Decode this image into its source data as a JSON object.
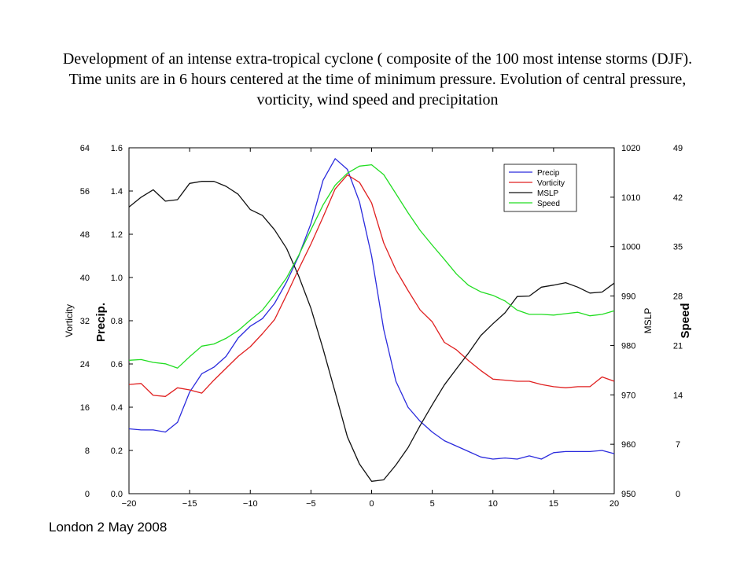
{
  "slide": {
    "title": "Development of an intense extra-tropical cyclone ( composite of the 100 most intense storms (DJF). Time units are in 6 hours centered at the time of minimum pressure. Evolution of central pressure, vorticity, wind speed and precipitation",
    "footer": "London 2 May 2008"
  },
  "chart_data": {
    "type": "line",
    "x_ticks": [
      -20,
      -15,
      -10,
      -5,
      0,
      5,
      10,
      15,
      20
    ],
    "x_tick_labels": [
      "−20",
      "−15",
      "−10",
      "−5",
      "0",
      "5",
      "10",
      "15",
      "20"
    ],
    "xlim": [
      -20,
      20
    ],
    "axes": {
      "vorticity": {
        "label": "Vorticity",
        "ylim": [
          0,
          64
        ],
        "ticks": [
          0,
          8,
          16,
          24,
          32,
          40,
          48,
          56,
          64
        ],
        "tick_labels": [
          "0",
          "8",
          "16",
          "24",
          "32",
          "40",
          "48",
          "56",
          "64"
        ]
      },
      "precip": {
        "label": "Precip.",
        "ylim": [
          0,
          1.6
        ],
        "ticks": [
          0,
          0.2,
          0.4,
          0.6,
          0.8,
          1.0,
          1.2,
          1.4,
          1.6
        ],
        "tick_labels": [
          "0.0",
          "0.2",
          "0.4",
          "0.6",
          "0.8",
          "1.0",
          "1.2",
          "1.4",
          "1.6"
        ]
      },
      "mslp": {
        "label": "MSLP",
        "ylim": [
          950,
          1020
        ],
        "ticks": [
          950,
          960,
          970,
          980,
          990,
          1000,
          1010,
          1020
        ],
        "tick_labels": [
          "950",
          "960",
          "970",
          "980",
          "990",
          "1000",
          "1010",
          "1020"
        ]
      },
      "speed": {
        "label": "Speed",
        "ylim": [
          0,
          49
        ],
        "ticks": [
          0,
          7,
          14,
          21,
          28,
          35,
          42,
          49
        ],
        "tick_labels": [
          "0",
          "7",
          "14",
          "21",
          "28",
          "35",
          "42",
          "49"
        ]
      }
    },
    "legend_position": "top-right",
    "grid": false,
    "x": [
      -20,
      -19,
      -18,
      -17,
      -16,
      -15,
      -14,
      -13,
      -12,
      -11,
      -10,
      -9,
      -8,
      -7,
      -6,
      -5,
      -4,
      -3,
      -2,
      -1,
      0,
      1,
      2,
      3,
      4,
      5,
      6,
      7,
      8,
      9,
      10,
      11,
      12,
      13,
      14,
      15,
      16,
      17,
      18,
      19,
      20
    ],
    "series": [
      {
        "name": "Precip",
        "color": "#2b2bdd",
        "axis": "precip",
        "values": [
          0.3,
          0.295,
          0.295,
          0.285,
          0.33,
          0.47,
          0.555,
          0.585,
          0.635,
          0.72,
          0.775,
          0.81,
          0.88,
          0.98,
          1.1,
          1.25,
          1.45,
          1.55,
          1.5,
          1.35,
          1.1,
          0.76,
          0.52,
          0.4,
          0.335,
          0.285,
          0.245,
          0.22,
          0.195,
          0.17,
          0.16,
          0.165,
          0.16,
          0.175,
          0.16,
          0.19,
          0.195,
          0.195,
          0.195,
          0.2,
          0.185
        ]
      },
      {
        "name": "Vorticity",
        "color": "#e02020",
        "axis": "vorticity",
        "values": [
          20.2,
          20.4,
          18.2,
          18.0,
          19.6,
          19.2,
          18.6,
          21.0,
          23.2,
          25.4,
          27.2,
          29.6,
          32.2,
          36.8,
          41.6,
          46.2,
          51.2,
          56.4,
          59.0,
          57.6,
          53.8,
          46.4,
          41.4,
          37.6,
          34.0,
          31.8,
          28.0,
          26.6,
          24.6,
          22.8,
          21.2,
          21.0,
          20.8,
          20.8,
          20.2,
          19.8,
          19.6,
          19.8,
          19.8,
          21.6,
          20.8
        ]
      },
      {
        "name": "MSLP",
        "color": "#111111",
        "axis": "mslp",
        "values": [
          1008.0,
          1010.0,
          1011.5,
          1009.2,
          1009.5,
          1012.8,
          1013.2,
          1013.2,
          1012.2,
          1010.6,
          1007.5,
          1006.3,
          1003.4,
          999.6,
          994.0,
          987.5,
          979.3,
          970.5,
          961.5,
          956.0,
          952.5,
          952.8,
          955.8,
          959.3,
          963.8,
          968.0,
          972.0,
          975.3,
          978.5,
          982.0,
          984.4,
          986.6,
          989.9,
          990.0,
          991.8,
          992.2,
          992.7,
          991.8,
          990.6,
          990.8,
          992.6
        ]
      },
      {
        "name": "Speed",
        "color": "#22dd22",
        "axis": "speed",
        "values": [
          18.9,
          19.0,
          18.6,
          18.4,
          17.8,
          19.4,
          20.9,
          21.2,
          22.0,
          23.1,
          24.6,
          26.0,
          28.2,
          30.6,
          33.8,
          37.4,
          40.9,
          43.7,
          45.4,
          46.4,
          46.6,
          45.2,
          42.5,
          39.8,
          37.3,
          35.2,
          33.2,
          31.1,
          29.5,
          28.6,
          28.1,
          27.3,
          26.0,
          25.4,
          25.4,
          25.3,
          25.5,
          25.7,
          25.2,
          25.4,
          25.9
        ]
      }
    ]
  }
}
